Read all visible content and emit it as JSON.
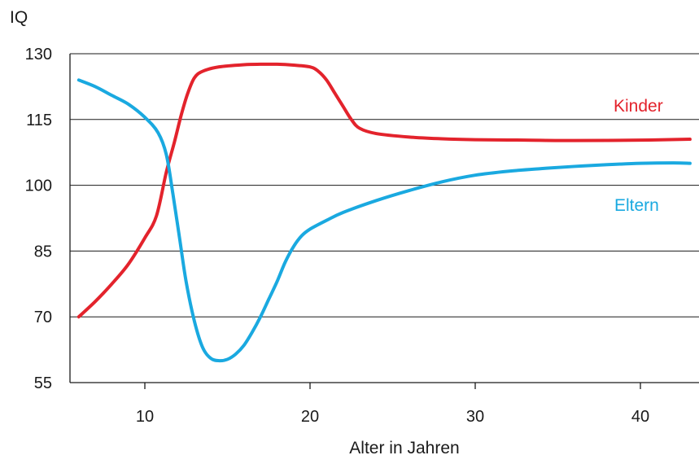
{
  "chart_data": {
    "type": "line",
    "title": "",
    "xlabel": "Alter in Jahren",
    "ylabel": "IQ",
    "xlim": [
      5.5,
      43
    ],
    "ylim": [
      55,
      130
    ],
    "xticks": [
      10,
      20,
      30,
      40
    ],
    "yticks": [
      55,
      70,
      85,
      100,
      115,
      130
    ],
    "grid": "horizontal",
    "series": [
      {
        "name": "Kinder",
        "color": "#e3232c",
        "points": [
          [
            6,
            70
          ],
          [
            7,
            73.5
          ],
          [
            8,
            77.5
          ],
          [
            9,
            82
          ],
          [
            10,
            88
          ],
          [
            10.7,
            93
          ],
          [
            11.3,
            103
          ],
          [
            11.8,
            110
          ],
          [
            12.2,
            116
          ],
          [
            12.6,
            121
          ],
          [
            13,
            124.5
          ],
          [
            13.5,
            126
          ],
          [
            14.5,
            127
          ],
          [
            16,
            127.5
          ],
          [
            17,
            127.6
          ],
          [
            18,
            127.6
          ],
          [
            19,
            127.4
          ],
          [
            20,
            127
          ],
          [
            20.5,
            126
          ],
          [
            21,
            124
          ],
          [
            21.5,
            121
          ],
          [
            22,
            118
          ],
          [
            22.5,
            115
          ],
          [
            23,
            113
          ],
          [
            24,
            111.8
          ],
          [
            26,
            111
          ],
          [
            28,
            110.6
          ],
          [
            30,
            110.4
          ],
          [
            33,
            110.3
          ],
          [
            36,
            110.2
          ],
          [
            40,
            110.3
          ],
          [
            43,
            110.5
          ]
        ]
      },
      {
        "name": "Eltern",
        "color": "#1aa9e0",
        "points": [
          [
            6,
            124
          ],
          [
            7,
            122.5
          ],
          [
            8,
            120.5
          ],
          [
            9,
            118.5
          ],
          [
            10,
            115.5
          ],
          [
            10.8,
            112
          ],
          [
            11.3,
            107
          ],
          [
            11.7,
            98
          ],
          [
            12.1,
            88
          ],
          [
            12.5,
            78
          ],
          [
            13,
            69
          ],
          [
            13.5,
            63
          ],
          [
            14,
            60.5
          ],
          [
            14.5,
            60
          ],
          [
            15,
            60.3
          ],
          [
            15.5,
            61.5
          ],
          [
            16,
            63.5
          ],
          [
            16.5,
            66.5
          ],
          [
            17,
            70
          ],
          [
            17.5,
            74
          ],
          [
            18,
            78
          ],
          [
            18.5,
            82.5
          ],
          [
            19,
            86
          ],
          [
            19.5,
            88.5
          ],
          [
            20,
            90
          ],
          [
            21,
            92
          ],
          [
            22,
            93.8
          ],
          [
            24,
            96.5
          ],
          [
            26,
            98.8
          ],
          [
            28,
            100.8
          ],
          [
            30,
            102.3
          ],
          [
            32,
            103.2
          ],
          [
            34,
            103.8
          ],
          [
            36,
            104.3
          ],
          [
            38,
            104.7
          ],
          [
            40,
            105
          ],
          [
            42,
            105.1
          ],
          [
            43,
            105
          ]
        ]
      }
    ]
  }
}
